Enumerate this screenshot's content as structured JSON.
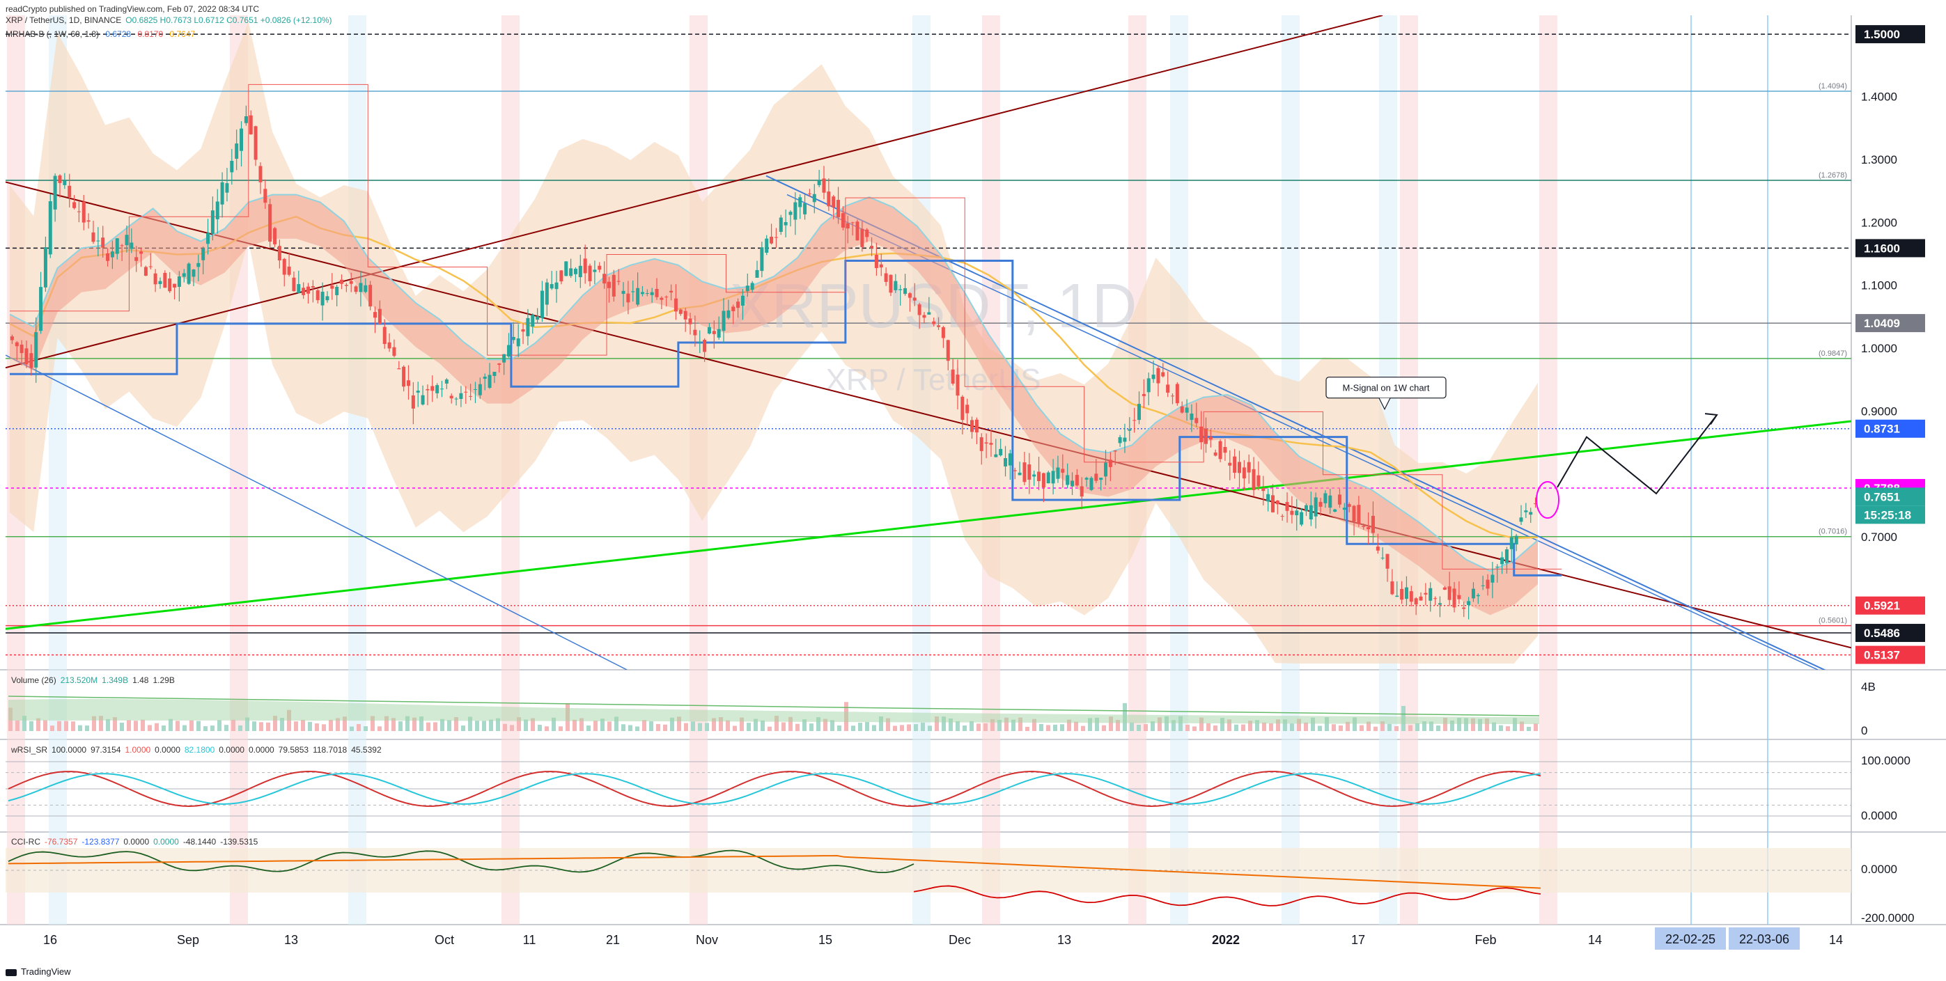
{
  "header": {
    "publisher": "readCrypto published on TradingView.com, Feb 07, 2022 08:34 UTC",
    "symbol_line": "XRP / TetherUS, 1D, BINANCE",
    "ohlc": "O0.6825 H0.7673 L0.6712 C0.7651 +0.0826 (+12.10%)",
    "indicator": "MRHAB-B (, 1W, 60, 1.8)",
    "indicator_values": [
      "0.6728",
      "0.8170",
      "0.7647"
    ]
  },
  "watermark": {
    "symbol": "XRPUSDT, 1D",
    "name": "XRP / TetherUS"
  },
  "annotation": "M-Signal on 1W chart",
  "colors": {
    "up": "#26a69a",
    "down": "#ef5350",
    "green_line": "#00e000",
    "dark_red_line": "#8b0000",
    "blue_line": "#3d7bd6",
    "orange_ma": "#f7c14d",
    "band_fill": "#f6dcc2",
    "magenta": "#ff00ff"
  },
  "chart_data": {
    "type": "candlestick",
    "x_ticks": [
      "16",
      "Sep",
      "13",
      "Oct",
      "11",
      "21",
      "Nov",
      "15",
      "Dec",
      "13",
      "2022",
      "17",
      "Feb",
      "14",
      "14"
    ],
    "date_badges": [
      "22-02-25",
      "22-03-06"
    ],
    "price_axis": [
      "1.4000",
      "1.3000",
      "1.2000",
      "1.1000",
      "1.0000",
      "0.9000",
      "0.7000"
    ],
    "ylim": [
      0.49,
      1.53
    ],
    "price_badges": [
      {
        "label": "1.5000",
        "color": "#131722",
        "price": 1.5
      },
      {
        "label": "1.1600",
        "color": "#131722",
        "price": 1.16
      },
      {
        "label": "1.0409",
        "color": "#787b86",
        "price": 1.0409
      },
      {
        "label": "0.8731",
        "color": "#2962ff",
        "price": 0.8731
      },
      {
        "label": "0.7788",
        "color": "#ff00ff",
        "price": 0.7788
      },
      {
        "label": "0.7651",
        "color": "#26a69a",
        "price": 0.7651
      },
      {
        "label": "15:25:18",
        "color": "#26a69a",
        "price": 0.7651
      },
      {
        "label": "0.5921",
        "color": "#f23645",
        "price": 0.5921
      },
      {
        "label": "0.5486",
        "color": "#131722",
        "price": 0.5486
      },
      {
        "label": "0.5137",
        "color": "#f23645",
        "price": 0.5137
      }
    ],
    "level_labels": [
      {
        "label": "(1.4094)",
        "price": 1.4094
      },
      {
        "label": "(1.2678)",
        "price": 1.2678
      },
      {
        "label": "(0.9847)",
        "price": 0.9847
      },
      {
        "label": "(0.7016)",
        "price": 0.7016
      },
      {
        "label": "(0.5601)",
        "price": 0.5601
      }
    ],
    "close_path": [
      1.02,
      0.98,
      1.28,
      1.22,
      1.15,
      1.17,
      1.12,
      1.1,
      1.14,
      1.25,
      1.38,
      1.18,
      1.1,
      1.08,
      1.1,
      1.09,
      1.0,
      0.92,
      0.95,
      0.92,
      0.95,
      1.0,
      1.05,
      1.12,
      1.13,
      1.11,
      1.08,
      1.1,
      1.07,
      1.0,
      1.05,
      1.1,
      1.18,
      1.22,
      1.26,
      1.2,
      1.17,
      1.1,
      1.07,
      1.03,
      0.9,
      0.84,
      0.82,
      0.79,
      0.8,
      0.78,
      0.81,
      0.88,
      0.97,
      0.92,
      0.86,
      0.83,
      0.8,
      0.75,
      0.73,
      0.76,
      0.75,
      0.72,
      0.62,
      0.6,
      0.61,
      0.6,
      0.63,
      0.7,
      0.765
    ]
  },
  "volume": {
    "label": "Volume (26)",
    "values": [
      "213.520M",
      "1.349B",
      "1.48",
      "1.29B"
    ],
    "axis": [
      "4B",
      "0"
    ]
  },
  "rsi": {
    "label": "wRSI_SR",
    "values": [
      "100.0000",
      "97.3154",
      "1.0000",
      "0.0000",
      "82.1800",
      "0.0000",
      "0.0000",
      "79.5853",
      "118.7018",
      "45.5392"
    ],
    "axis": [
      "100.0000",
      "0.0000"
    ]
  },
  "cci": {
    "label": "CCI-RC",
    "values": [
      "-76.7357",
      "-123.8377",
      "0.0000",
      "0.0000",
      "-48.1440",
      "-139.5315"
    ],
    "axis": [
      "0.0000",
      "-200.0000"
    ]
  },
  "footer": {
    "logo": "TradingView"
  }
}
